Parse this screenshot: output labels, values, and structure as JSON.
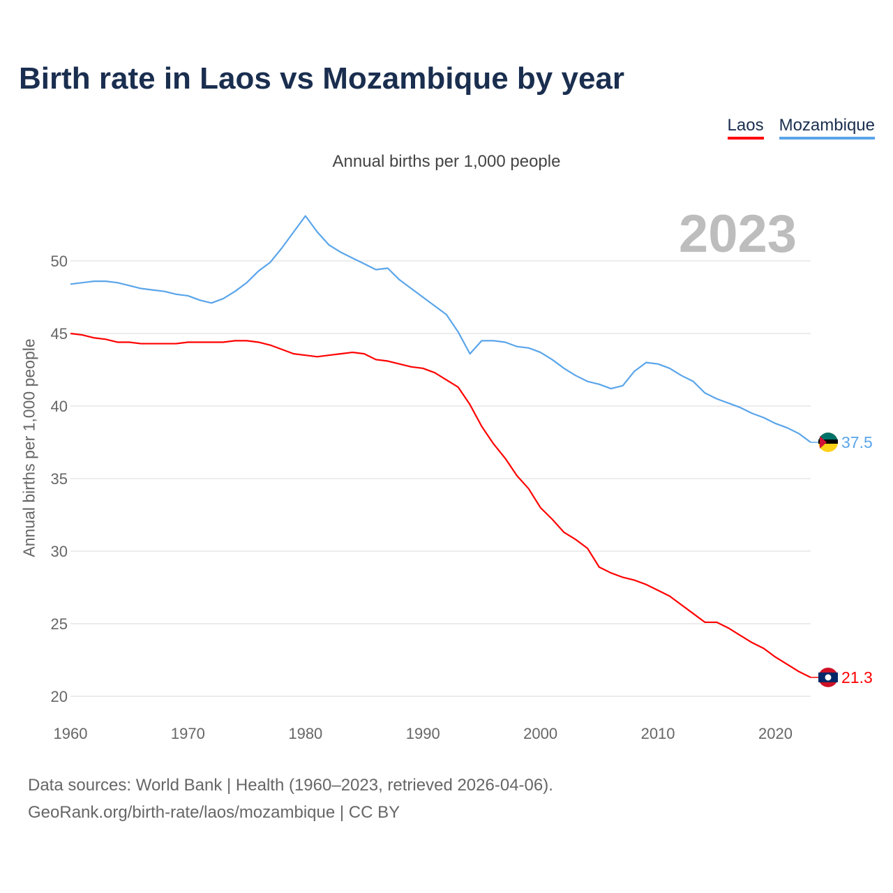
{
  "title": "Birth rate in Laos vs Mozambique by year",
  "footer": {
    "line1": "Data sources: World Bank | Health (1960–2023, retrieved 2026-04-06).",
    "line2": "GeoRank.org/birth-rate/laos/mozambique | CC BY"
  },
  "chart_data": {
    "type": "line",
    "title": "Birth rate in Laos vs Mozambique by year",
    "subtitle": "Annual births per 1,000 people",
    "ylabel": "Annual births per 1,000 people",
    "xlabel": "",
    "current_year_label": "2023",
    "xlim": [
      1960,
      2023
    ],
    "ylim": [
      20,
      53.5
    ],
    "xticks": [
      "1960",
      "1970",
      "1980",
      "1990",
      "2000",
      "2010",
      "2020"
    ],
    "yticks": [
      "20",
      "25",
      "30",
      "35",
      "40",
      "45",
      "50"
    ],
    "grid": true,
    "legend_position": "top-right",
    "x": [
      1960,
      1961,
      1962,
      1963,
      1964,
      1965,
      1966,
      1967,
      1968,
      1969,
      1970,
      1971,
      1972,
      1973,
      1974,
      1975,
      1976,
      1977,
      1978,
      1979,
      1980,
      1981,
      1982,
      1983,
      1984,
      1985,
      1986,
      1987,
      1988,
      1989,
      1990,
      1991,
      1992,
      1993,
      1994,
      1995,
      1996,
      1997,
      1998,
      1999,
      2000,
      2001,
      2002,
      2003,
      2004,
      2005,
      2006,
      2007,
      2008,
      2009,
      2010,
      2011,
      2012,
      2013,
      2014,
      2015,
      2016,
      2017,
      2018,
      2019,
      2020,
      2021,
      2022,
      2023
    ],
    "series": [
      {
        "name": "Laos",
        "color": "#ff0000",
        "end_label": "21.3",
        "values": [
          45.0,
          44.9,
          44.7,
          44.6,
          44.4,
          44.4,
          44.3,
          44.3,
          44.3,
          44.3,
          44.4,
          44.4,
          44.4,
          44.4,
          44.5,
          44.5,
          44.4,
          44.2,
          43.9,
          43.6,
          43.5,
          43.4,
          43.5,
          43.6,
          43.7,
          43.6,
          43.2,
          43.1,
          42.9,
          42.7,
          42.6,
          42.3,
          41.8,
          41.3,
          40.1,
          38.6,
          37.4,
          36.4,
          35.2,
          34.3,
          33.0,
          32.2,
          31.3,
          30.8,
          30.2,
          28.9,
          28.5,
          28.2,
          28.0,
          27.7,
          27.3,
          26.9,
          26.3,
          25.7,
          25.1,
          25.1,
          24.7,
          24.2,
          23.7,
          23.3,
          22.7,
          22.2,
          21.7,
          21.3
        ]
      },
      {
        "name": "Mozambique",
        "color": "#5aa5ea",
        "end_label": "37.5",
        "values": [
          48.4,
          48.5,
          48.6,
          48.6,
          48.5,
          48.3,
          48.1,
          48.0,
          47.9,
          47.7,
          47.6,
          47.3,
          47.1,
          47.4,
          47.9,
          48.5,
          49.3,
          49.9,
          50.9,
          52.0,
          53.1,
          52.0,
          51.1,
          50.6,
          50.2,
          49.8,
          49.4,
          49.5,
          48.7,
          48.1,
          47.5,
          46.9,
          46.3,
          45.1,
          43.6,
          44.5,
          44.5,
          44.4,
          44.1,
          44.0,
          43.7,
          43.2,
          42.6,
          42.1,
          41.7,
          41.5,
          41.2,
          41.4,
          42.4,
          43.0,
          42.9,
          42.6,
          42.1,
          41.7,
          40.9,
          40.5,
          40.2,
          39.9,
          39.5,
          39.2,
          38.8,
          38.5,
          38.1,
          37.5
        ]
      }
    ]
  }
}
